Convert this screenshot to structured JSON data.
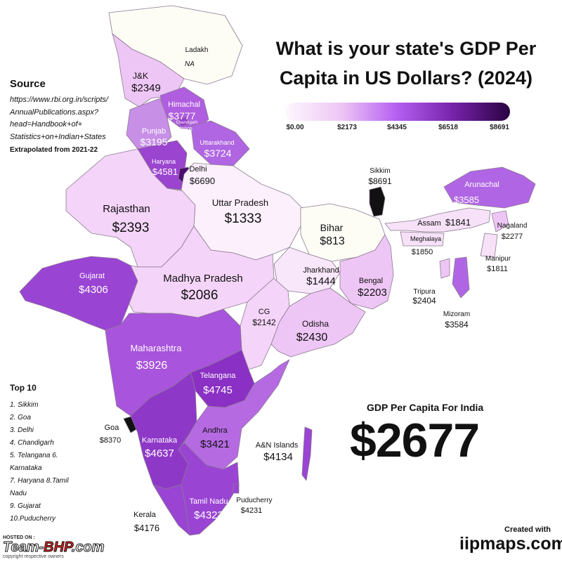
{
  "title_line1": "What is your state's GDP Per",
  "title_line2": "Capita in US Dollars? (2024)",
  "legend": {
    "ticks": [
      "$0.00",
      "$2173",
      "$4345",
      "$6518",
      "$8691"
    ],
    "colors": [
      "#fdf7fe",
      "#eec6f5",
      "#b45ef0",
      "#7622a8",
      "#2a0342"
    ]
  },
  "source": {
    "heading": "Source",
    "url_lines": [
      "https://www.rbi.org.in/scripts/",
      "AnnualPublications.aspx?",
      "head=Handbook+of+",
      "Statistics+on+Indian+States"
    ],
    "note": "Extrapolated from 2021-22"
  },
  "top10": {
    "heading": "Top 10",
    "lines": [
      "1. Sikkim",
      "2. Goa",
      "3. Delhi",
      "4. Chandigarh",
      "5. Telangana 6.",
      "Karnataka",
      "7. Haryana 8.Tamil",
      "Nadu",
      "9. Gujarat",
      "10.Puducherry"
    ]
  },
  "india": {
    "label": "GDP Per Capita For India",
    "value": "$2677"
  },
  "credit": {
    "created": "Created with",
    "brand": "iipmaps.com"
  },
  "watermark": {
    "hosted": "HOSTED ON :",
    "name_a": "Team-",
    "name_b": "BHP",
    "name_c": ".com",
    "copy": "copyright respective owners"
  },
  "regions": [
    {
      "key": "ladakh",
      "name": "Ladakh",
      "value": "NA",
      "color": "#fdfdf6"
    },
    {
      "key": "jk",
      "name": "J&K",
      "value": "$2349",
      "color": "#eec6f5"
    },
    {
      "key": "himachal",
      "name": "Himachal",
      "value": "$3777",
      "color": "#b05ee0"
    },
    {
      "key": "chandigarh",
      "name": "Chandigarh",
      "value": "$5905",
      "color": "#9a3cd0"
    },
    {
      "key": "punjab",
      "name": "Punjab",
      "value": "$3195",
      "color": "#c78fe6"
    },
    {
      "key": "uttarakhand",
      "name": "Uttarakhand",
      "value": "$3724",
      "color": "#b066e2"
    },
    {
      "key": "haryana",
      "name": "Haryana",
      "value": "$4581",
      "color": "#9a44cf"
    },
    {
      "key": "delhi",
      "name": "Delhi",
      "value": "$6690",
      "color": "#4a0c6e"
    },
    {
      "key": "rajasthan",
      "name": "Rajasthan",
      "value": "$2393",
      "color": "#f4d4f8"
    },
    {
      "key": "up",
      "name": "Uttar Pradesh",
      "value": "$1333",
      "color": "#fcf0fc"
    },
    {
      "key": "bihar",
      "name": "Bihar",
      "value": "$813",
      "color": "#fdfdf6"
    },
    {
      "key": "sikkim",
      "name": "Sikkim",
      "value": "$8691",
      "color": "#111111"
    },
    {
      "key": "arunachal",
      "name": "Arunachal",
      "value": "$3585",
      "color": "#b066e4"
    },
    {
      "key": "assam",
      "name": "Assam",
      "value": "$1841",
      "color": "#f6e1f8"
    },
    {
      "key": "nagaland",
      "name": "Nagaland",
      "value": "$2277",
      "color": "#eec6f5"
    },
    {
      "key": "meghalaya",
      "name": "Meghalaya",
      "value": "$1850",
      "color": "#f6e1f8"
    },
    {
      "key": "manipur",
      "name": "Manipur",
      "value": "$1811",
      "color": "#f6e1f8"
    },
    {
      "key": "tripura",
      "name": "Tripura",
      "value": "$2404",
      "color": "#eec6f5"
    },
    {
      "key": "mizoram",
      "name": "Mizoram",
      "value": "$3584",
      "color": "#b066e4"
    },
    {
      "key": "gujarat",
      "name": "Gujarat",
      "value": "$4306",
      "color": "#9a44d4"
    },
    {
      "key": "mp",
      "name": "Madhya Pradesh",
      "value": "$2086",
      "color": "#f4d4f8"
    },
    {
      "key": "jharkhand",
      "name": "Jharkhand",
      "value": "$1444",
      "color": "#f8e6fa"
    },
    {
      "key": "bengal",
      "name": "Bengal",
      "value": "$2203",
      "color": "#eec6f5"
    },
    {
      "key": "cg",
      "name": "CG",
      "value": "$2142",
      "color": "#f4d4f8"
    },
    {
      "key": "odisha",
      "name": "Odisha",
      "value": "$2430",
      "color": "#eec6f5"
    },
    {
      "key": "maharashtra",
      "name": "Maharashtra",
      "value": "$3926",
      "color": "#a854dc"
    },
    {
      "key": "telangana",
      "name": "Telangana",
      "value": "$4745",
      "color": "#8a30c4"
    },
    {
      "key": "goa",
      "name": "Goa",
      "value": "$8370",
      "color": "#111111"
    },
    {
      "key": "karnataka",
      "name": "Karnataka",
      "value": "$4637",
      "color": "#8e38c8"
    },
    {
      "key": "andhra",
      "name": "Andhra",
      "value": "$3421",
      "color": "#b56ae2"
    },
    {
      "key": "an",
      "name": "A&N Islands",
      "value": "$4134",
      "color": "#9a44d4"
    },
    {
      "key": "tn",
      "name": "Tamil Nadu",
      "value": "$4323",
      "color": "#9a44d4"
    },
    {
      "key": "kerala",
      "name": "Kerala",
      "value": "$4176",
      "color": "#9a44d4"
    },
    {
      "key": "puducherry",
      "name": "Puducherry",
      "value": "$4231",
      "color": "#9a44d4"
    }
  ]
}
